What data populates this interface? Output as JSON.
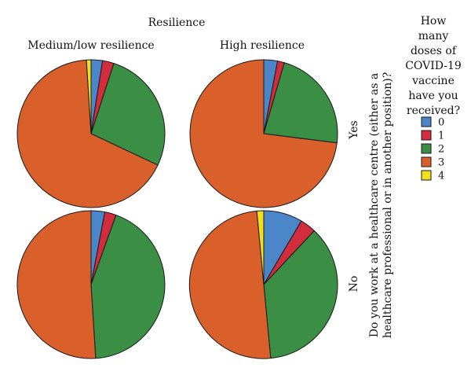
{
  "chart_data": {
    "type": "pie",
    "title": "Resilience",
    "columns": [
      "Medium/low resilience",
      "High resilience"
    ],
    "rows": [
      "Yes",
      "No"
    ],
    "row_axis_label_line1": "Do you work at a healthcare centre (either as a",
    "row_axis_label_line2": "healthcare professional or in another position)?",
    "legend": {
      "title_lines": [
        "How",
        "many",
        "doses of",
        "COVID-19",
        "vaccine",
        "have you",
        "received?"
      ],
      "placement": "right",
      "categories": [
        "0",
        "1",
        "2",
        "3",
        "4"
      ],
      "colors": [
        "#4a86c8",
        "#d22d3c",
        "#3a8f45",
        "#d95f2b",
        "#f2df1c"
      ]
    },
    "units": "percent of respondents",
    "pies": [
      {
        "row": "Yes",
        "column": "Medium/low resilience",
        "values": [
          2.5,
          2.5,
          27.0,
          67.0,
          1.0
        ]
      },
      {
        "row": "Yes",
        "column": "High resilience",
        "values": [
          3.0,
          1.5,
          22.5,
          73.0,
          0.0
        ]
      },
      {
        "row": "No",
        "column": "Medium/low resilience",
        "values": [
          3.0,
          2.5,
          43.5,
          51.0,
          0.0
        ]
      },
      {
        "row": "No",
        "column": "High resilience",
        "values": [
          8.5,
          3.5,
          36.5,
          50.0,
          1.5
        ]
      }
    ]
  }
}
